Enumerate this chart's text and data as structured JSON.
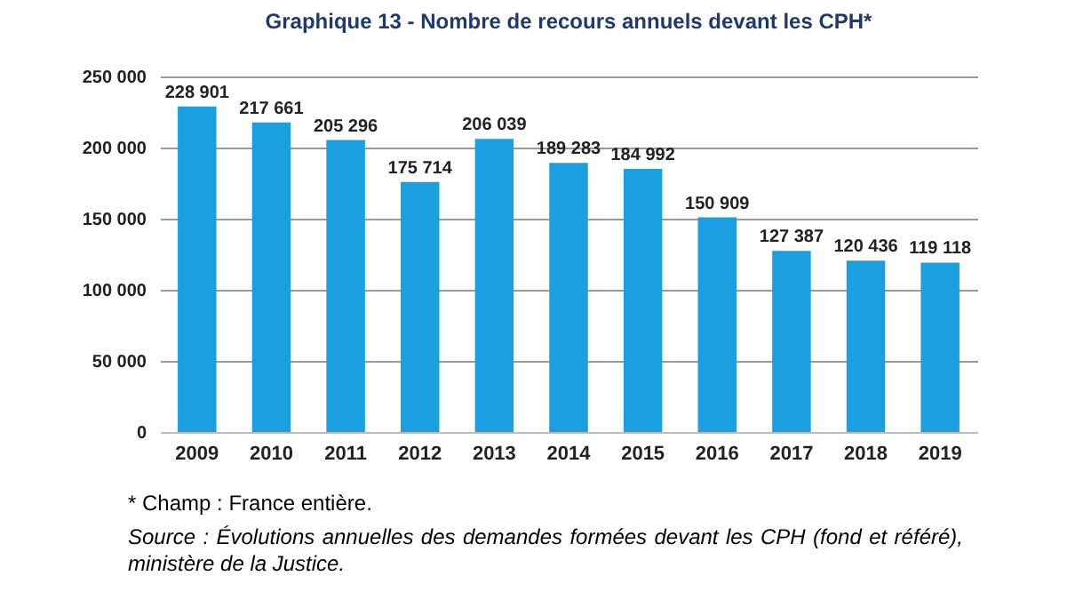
{
  "chart_data": {
    "type": "bar",
    "title": "Graphique 13 - Nombre de recours annuels devant les CPH*",
    "categories": [
      "2009",
      "2010",
      "2011",
      "2012",
      "2013",
      "2014",
      "2015",
      "2016",
      "2017",
      "2018",
      "2019"
    ],
    "values": [
      228901,
      217661,
      205296,
      175714,
      206039,
      189283,
      184992,
      150909,
      127387,
      120436,
      119118
    ],
    "value_labels": [
      "228 901",
      "217 661",
      "205 296",
      "175 714",
      "206 039",
      "189 283",
      "184 992",
      "150 909",
      "127 387",
      "120 436",
      "119 118"
    ],
    "color": "#1a9fe0",
    "ylim": [
      0,
      250000
    ],
    "yticks": [
      {
        "value": 0,
        "label": "0"
      },
      {
        "value": 50000,
        "label": "50 000"
      },
      {
        "value": 100000,
        "label": "100 000"
      },
      {
        "value": 150000,
        "label": "150 000"
      },
      {
        "value": 200000,
        "label": "200 000"
      },
      {
        "value": 250000,
        "label": "250 000"
      }
    ],
    "grid": "y",
    "annotations": [
      "* Champ : France entière.",
      "Source : Évolutions annuelles des demandes formées devant les CPH (fond et référé), ministère de la Justice."
    ]
  }
}
